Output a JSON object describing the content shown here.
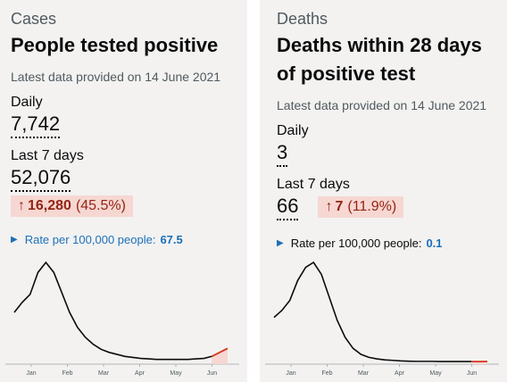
{
  "cards": [
    {
      "caption": "Cases",
      "title_lines": [
        "People tested positive"
      ],
      "updated": "Latest data provided on 14 June 2021",
      "daily_label": "Daily",
      "daily_value": "7,742",
      "week_label": "Last 7 days",
      "week_value": "52,076",
      "change": {
        "arrow": "↑",
        "absolute": "16,280",
        "percent": "(45.5%)"
      },
      "rate": {
        "label": "Rate per 100,000 people:",
        "value": "67.5"
      }
    },
    {
      "caption": "Deaths",
      "title_lines": [
        "Deaths within 28 days",
        "of positive test"
      ],
      "updated": "Latest data provided on 14 June 2021",
      "daily_label": "Daily",
      "daily_value": "3",
      "week_label": "Last 7 days",
      "week_value": "66",
      "change": {
        "arrow": "↑",
        "absolute": "7",
        "percent": "(11.9%)"
      },
      "rate": {
        "label": "Rate per 100,000 people:",
        "value": "0.1"
      }
    }
  ],
  "chart_data": [
    {
      "type": "line",
      "x_ticks": [
        "Jan",
        "Feb",
        "Mar",
        "Apr",
        "May",
        "Jun"
      ],
      "series": [
        {
          "values": [
            0.5,
            0.6,
            0.68,
            0.9,
            1.0,
            0.9,
            0.7,
            0.5,
            0.35,
            0.25,
            0.18,
            0.13,
            0.1,
            0.08,
            0.06,
            0.05,
            0.04,
            0.035,
            0.03,
            0.03,
            0.03,
            0.03,
            0.03,
            0.035,
            0.04,
            0.06,
            0.1,
            0.14
          ]
        }
      ],
      "highlight_last_n": 3,
      "colors": {
        "line": "#0b0c0c",
        "highlight": "#d4351c",
        "highlight_fill": "#f6d7d2"
      }
    },
    {
      "type": "line",
      "x_ticks": [
        "Jan",
        "Feb",
        "Mar",
        "Apr",
        "May",
        "Jun"
      ],
      "series": [
        {
          "values": [
            0.45,
            0.52,
            0.62,
            0.82,
            0.95,
            1.0,
            0.88,
            0.65,
            0.42,
            0.25,
            0.14,
            0.08,
            0.05,
            0.035,
            0.025,
            0.02,
            0.015,
            0.012,
            0.01,
            0.01,
            0.01,
            0.008,
            0.008,
            0.008,
            0.008,
            0.008,
            0.008,
            0.009
          ]
        }
      ],
      "highlight_last_n": 3,
      "colors": {
        "line": "#0b0c0c",
        "highlight": "#d4351c",
        "highlight_fill": "#f6d7d2"
      }
    }
  ]
}
